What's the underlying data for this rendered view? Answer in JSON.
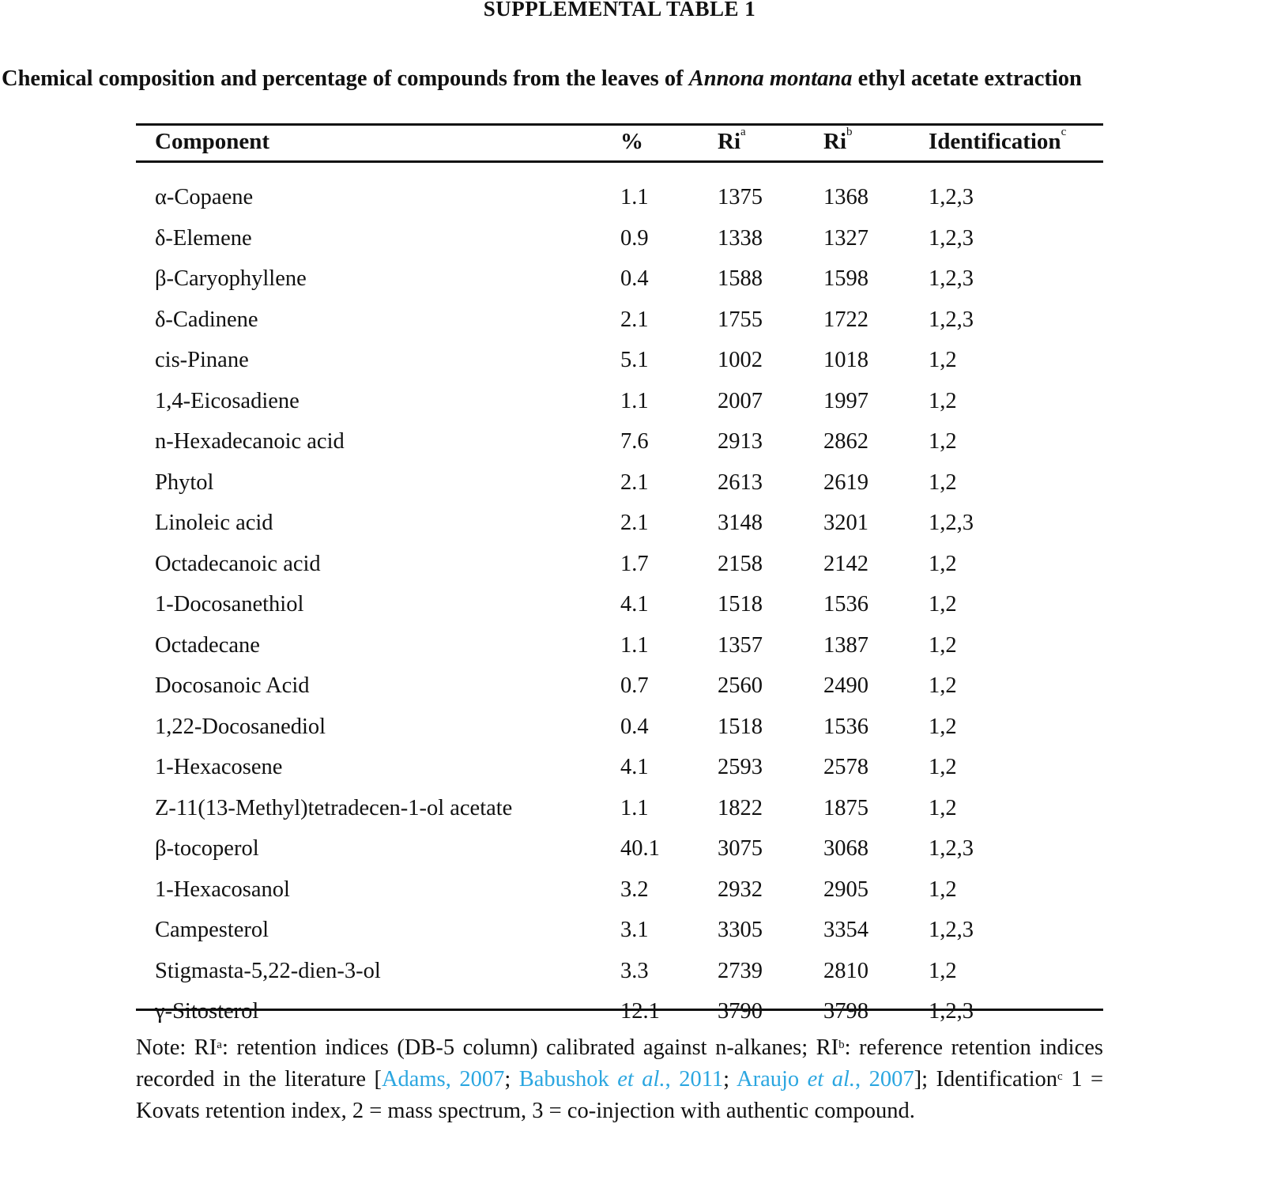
{
  "title": "SUPPLEMENTAL TABLE 1",
  "subtitle": {
    "before": "Chemical composition and percentage of compounds from the leaves of ",
    "species": "Annona montana",
    "after": " ethyl acetate extraction"
  },
  "table": {
    "headers": {
      "component": "Component",
      "percent": "%",
      "ri_a": "Ri",
      "ri_a_sup": "a",
      "ri_b": "Ri",
      "ri_b_sup": "b",
      "identification": "Identification",
      "identification_sup": "c"
    },
    "rows": [
      [
        "α-Copaene",
        "1.1",
        "1375",
        "1368",
        "1,2,3"
      ],
      [
        "δ-Elemene",
        "0.9",
        "1338",
        "1327",
        "1,2,3"
      ],
      [
        "β-Caryophyllene",
        "0.4",
        "1588",
        "1598",
        "1,2,3"
      ],
      [
        "δ-Cadinene",
        "2.1",
        "1755",
        "1722",
        "1,2,3"
      ],
      [
        "cis-Pinane",
        "5.1",
        "1002",
        "1018",
        "1,2"
      ],
      [
        "1,4-Eicosadiene",
        "1.1",
        "2007",
        "1997",
        "1,2"
      ],
      [
        "n-Hexadecanoic acid",
        "7.6",
        "2913",
        "2862",
        "1,2"
      ],
      [
        "Phytol",
        "2.1",
        "2613",
        "2619",
        "1,2"
      ],
      [
        "Linoleic acid",
        "2.1",
        "3148",
        "3201",
        "1,2,3"
      ],
      [
        "Octadecanoic acid",
        "1.7",
        "2158",
        "2142",
        "1,2"
      ],
      [
        "1-Docosanethiol",
        "4.1",
        "1518",
        "1536",
        "1,2"
      ],
      [
        "Octadecane",
        "1.1",
        "1357",
        "1387",
        "1,2"
      ],
      [
        "Docosanoic Acid",
        "0.7",
        "2560",
        "2490",
        "1,2"
      ],
      [
        "1,22-Docosanediol",
        "0.4",
        "1518",
        "1536",
        "1,2"
      ],
      [
        "1-Hexacosene",
        "4.1",
        "2593",
        "2578",
        "1,2"
      ],
      [
        "Z-11(13-Methyl)tetradecen-1-ol acetate",
        "1.1",
        "1822",
        "1875",
        "1,2"
      ],
      [
        "β-tocoperol",
        "40.1",
        "3075",
        "3068",
        "1,2,3"
      ],
      [
        "1-Hexacosanol",
        "3.2",
        "2932",
        "2905",
        "1,2"
      ],
      [
        "Campesterol",
        "3.1",
        "3305",
        "3354",
        "1,2,3"
      ],
      [
        "Stigmasta-5,22-dien-3-ol",
        "3.3",
        "2739",
        "2810",
        "1,2"
      ],
      [
        "γ-Sitosterol",
        "12.1",
        "3790",
        "3798",
        "1,2,3"
      ]
    ]
  },
  "note": {
    "t1": "Note: RI",
    "s1": "a",
    "t2": ": retention indices (DB-5 column) calibrated against n-alkanes; RI",
    "s2": "b",
    "t3": ": reference retention indices recorded in the literature [",
    "ref1": "Adams, 2007",
    "sep1": "; ",
    "ref2a": "Babushok ",
    "ref2b": "et al.",
    "ref2c": ", 2011",
    "sep2": "; ",
    "ref3a": "Araujo ",
    "ref3b": "et al.",
    "ref3c": ", 2007",
    "t4": "]; Identification",
    "s3": "c",
    "t5": " 1 = Kovats retention index, 2 = mass spectrum, 3 = co-injection with authentic compound."
  },
  "colors": {
    "link": "#2ba6e0"
  }
}
